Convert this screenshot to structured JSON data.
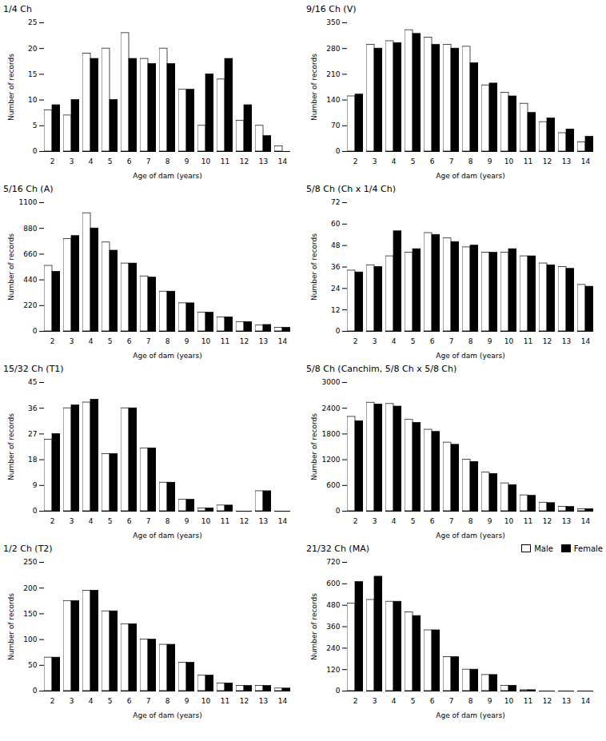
{
  "chart_data": [
    {
      "type": "bar",
      "title": "1/4 Ch",
      "xlabel": "Age of dam (years)",
      "ylabel": "Number of records",
      "categories": [
        2,
        3,
        4,
        5,
        6,
        7,
        8,
        9,
        10,
        11,
        12,
        13,
        14
      ],
      "series": [
        {
          "name": "Male",
          "color": "white",
          "values": [
            8,
            7,
            19,
            20,
            23,
            18,
            20,
            12,
            5,
            14,
            6,
            5,
            1
          ]
        },
        {
          "name": "Female",
          "color": "black",
          "values": [
            9,
            10,
            18,
            10,
            18,
            17,
            17,
            12,
            15,
            18,
            9,
            3,
            0
          ]
        }
      ],
      "ylim": [
        0,
        25
      ],
      "yticks": [
        0,
        5,
        10,
        15,
        20,
        25
      ]
    },
    {
      "type": "bar",
      "title": "9/16 Ch (V)",
      "xlabel": "Age of dam (years)",
      "ylabel": "Number of records",
      "categories": [
        2,
        3,
        4,
        5,
        6,
        7,
        8,
        9,
        10,
        11,
        12,
        13,
        14
      ],
      "series": [
        {
          "name": "Male",
          "color": "white",
          "values": [
            150,
            290,
            300,
            330,
            310,
            290,
            285,
            180,
            160,
            130,
            80,
            50,
            25
          ]
        },
        {
          "name": "Female",
          "color": "black",
          "values": [
            155,
            280,
            295,
            320,
            290,
            280,
            240,
            185,
            150,
            105,
            90,
            60,
            40
          ]
        }
      ],
      "ylim": [
        0,
        350
      ],
      "yticks": [
        0,
        70,
        140,
        210,
        280,
        350
      ]
    },
    {
      "type": "bar",
      "title": "5/16 Ch (A)",
      "xlabel": "Age of dam (years)",
      "ylabel": "Number of records",
      "categories": [
        2,
        3,
        4,
        5,
        6,
        7,
        8,
        9,
        10,
        11,
        12,
        13,
        14
      ],
      "series": [
        {
          "name": "Male",
          "color": "white",
          "values": [
            560,
            790,
            1010,
            760,
            580,
            470,
            340,
            240,
            160,
            120,
            80,
            50,
            30
          ]
        },
        {
          "name": "Female",
          "color": "black",
          "values": [
            510,
            815,
            880,
            690,
            580,
            460,
            340,
            240,
            160,
            120,
            80,
            55,
            30
          ]
        }
      ],
      "ylim": [
        0,
        1100
      ],
      "yticks": [
        0,
        220,
        440,
        660,
        880,
        1100
      ]
    },
    {
      "type": "bar",
      "title": "5/8 Ch (Ch x 1/4 Ch)",
      "xlabel": "Age of dam (years)",
      "ylabel": "Number of records",
      "categories": [
        2,
        3,
        4,
        5,
        6,
        7,
        8,
        9,
        10,
        11,
        12,
        13,
        14
      ],
      "series": [
        {
          "name": "Male",
          "color": "white",
          "values": [
            34,
            37,
            42,
            44,
            55,
            52,
            47,
            44,
            44,
            42,
            38,
            36,
            26
          ]
        },
        {
          "name": "Female",
          "color": "black",
          "values": [
            33,
            36,
            56,
            46,
            54,
            50,
            48,
            44,
            46,
            42,
            37,
            35,
            25
          ]
        }
      ],
      "ylim": [
        0,
        72
      ],
      "yticks": [
        0,
        12,
        24,
        36,
        48,
        60,
        72
      ]
    },
    {
      "type": "bar",
      "title": "15/32 Ch (T1)",
      "xlabel": "Age of dam (years)",
      "ylabel": "Number of records",
      "categories": [
        2,
        3,
        4,
        5,
        6,
        7,
        8,
        9,
        10,
        11,
        12,
        13,
        14
      ],
      "series": [
        {
          "name": "Male",
          "color": "white",
          "values": [
            25,
            36,
            38,
            20,
            36,
            22,
            10,
            4,
            1,
            2,
            0,
            7,
            0
          ]
        },
        {
          "name": "Female",
          "color": "black",
          "values": [
            27,
            37,
            39,
            20,
            36,
            22,
            10,
            4,
            1,
            2,
            0,
            7,
            0
          ]
        }
      ],
      "ylim": [
        0,
        45
      ],
      "yticks": [
        0,
        9,
        18,
        27,
        36,
        45
      ]
    },
    {
      "type": "bar",
      "title": "5/8 Ch (Canchim, 5/8 Ch x 5/8 Ch)",
      "xlabel": "Age of dam (years)",
      "ylabel": "Number of records",
      "categories": [
        2,
        3,
        4,
        5,
        6,
        7,
        8,
        9,
        10,
        11,
        12,
        13,
        14
      ],
      "series": [
        {
          "name": "Male",
          "color": "white",
          "values": [
            2200,
            2530,
            2500,
            2130,
            1900,
            1600,
            1200,
            900,
            650,
            370,
            200,
            100,
            50
          ]
        },
        {
          "name": "Female",
          "color": "black",
          "values": [
            2100,
            2490,
            2440,
            2060,
            1850,
            1550,
            1150,
            870,
            610,
            360,
            190,
            100,
            50
          ]
        }
      ],
      "ylim": [
        0,
        3000
      ],
      "yticks": [
        0,
        600,
        1200,
        1800,
        2400,
        3000
      ]
    },
    {
      "type": "bar",
      "title": "1/2 Ch (T2)",
      "xlabel": "Age of dam (years)",
      "ylabel": "Number of records",
      "categories": [
        2,
        3,
        4,
        5,
        6,
        7,
        8,
        9,
        10,
        11,
        12,
        13,
        14
      ],
      "series": [
        {
          "name": "Male",
          "color": "white",
          "values": [
            65,
            175,
            195,
            155,
            130,
            100,
            90,
            55,
            30,
            15,
            10,
            10,
            5
          ]
        },
        {
          "name": "Female",
          "color": "black",
          "values": [
            65,
            175,
            195,
            155,
            130,
            100,
            90,
            55,
            30,
            15,
            10,
            10,
            5
          ]
        }
      ],
      "ylim": [
        0,
        250
      ],
      "yticks": [
        0,
        50,
        100,
        150,
        200,
        250
      ]
    },
    {
      "type": "bar",
      "title": "21/32 Ch (MA)",
      "xlabel": "Age of dam (years)",
      "ylabel": "Number of records",
      "categories": [
        2,
        3,
        4,
        5,
        6,
        7,
        8,
        9,
        10,
        11,
        12,
        13,
        14
      ],
      "series": [
        {
          "name": "Male",
          "color": "white",
          "values": [
            490,
            510,
            500,
            440,
            340,
            190,
            120,
            90,
            30,
            5,
            0,
            0,
            0
          ]
        },
        {
          "name": "Female",
          "color": "black",
          "values": [
            610,
            640,
            500,
            420,
            340,
            190,
            120,
            90,
            30,
            5,
            0,
            0,
            0
          ]
        }
      ],
      "ylim": [
        0,
        720
      ],
      "yticks": [
        0,
        120,
        240,
        360,
        480,
        600,
        720
      ],
      "legend": "right"
    }
  ]
}
